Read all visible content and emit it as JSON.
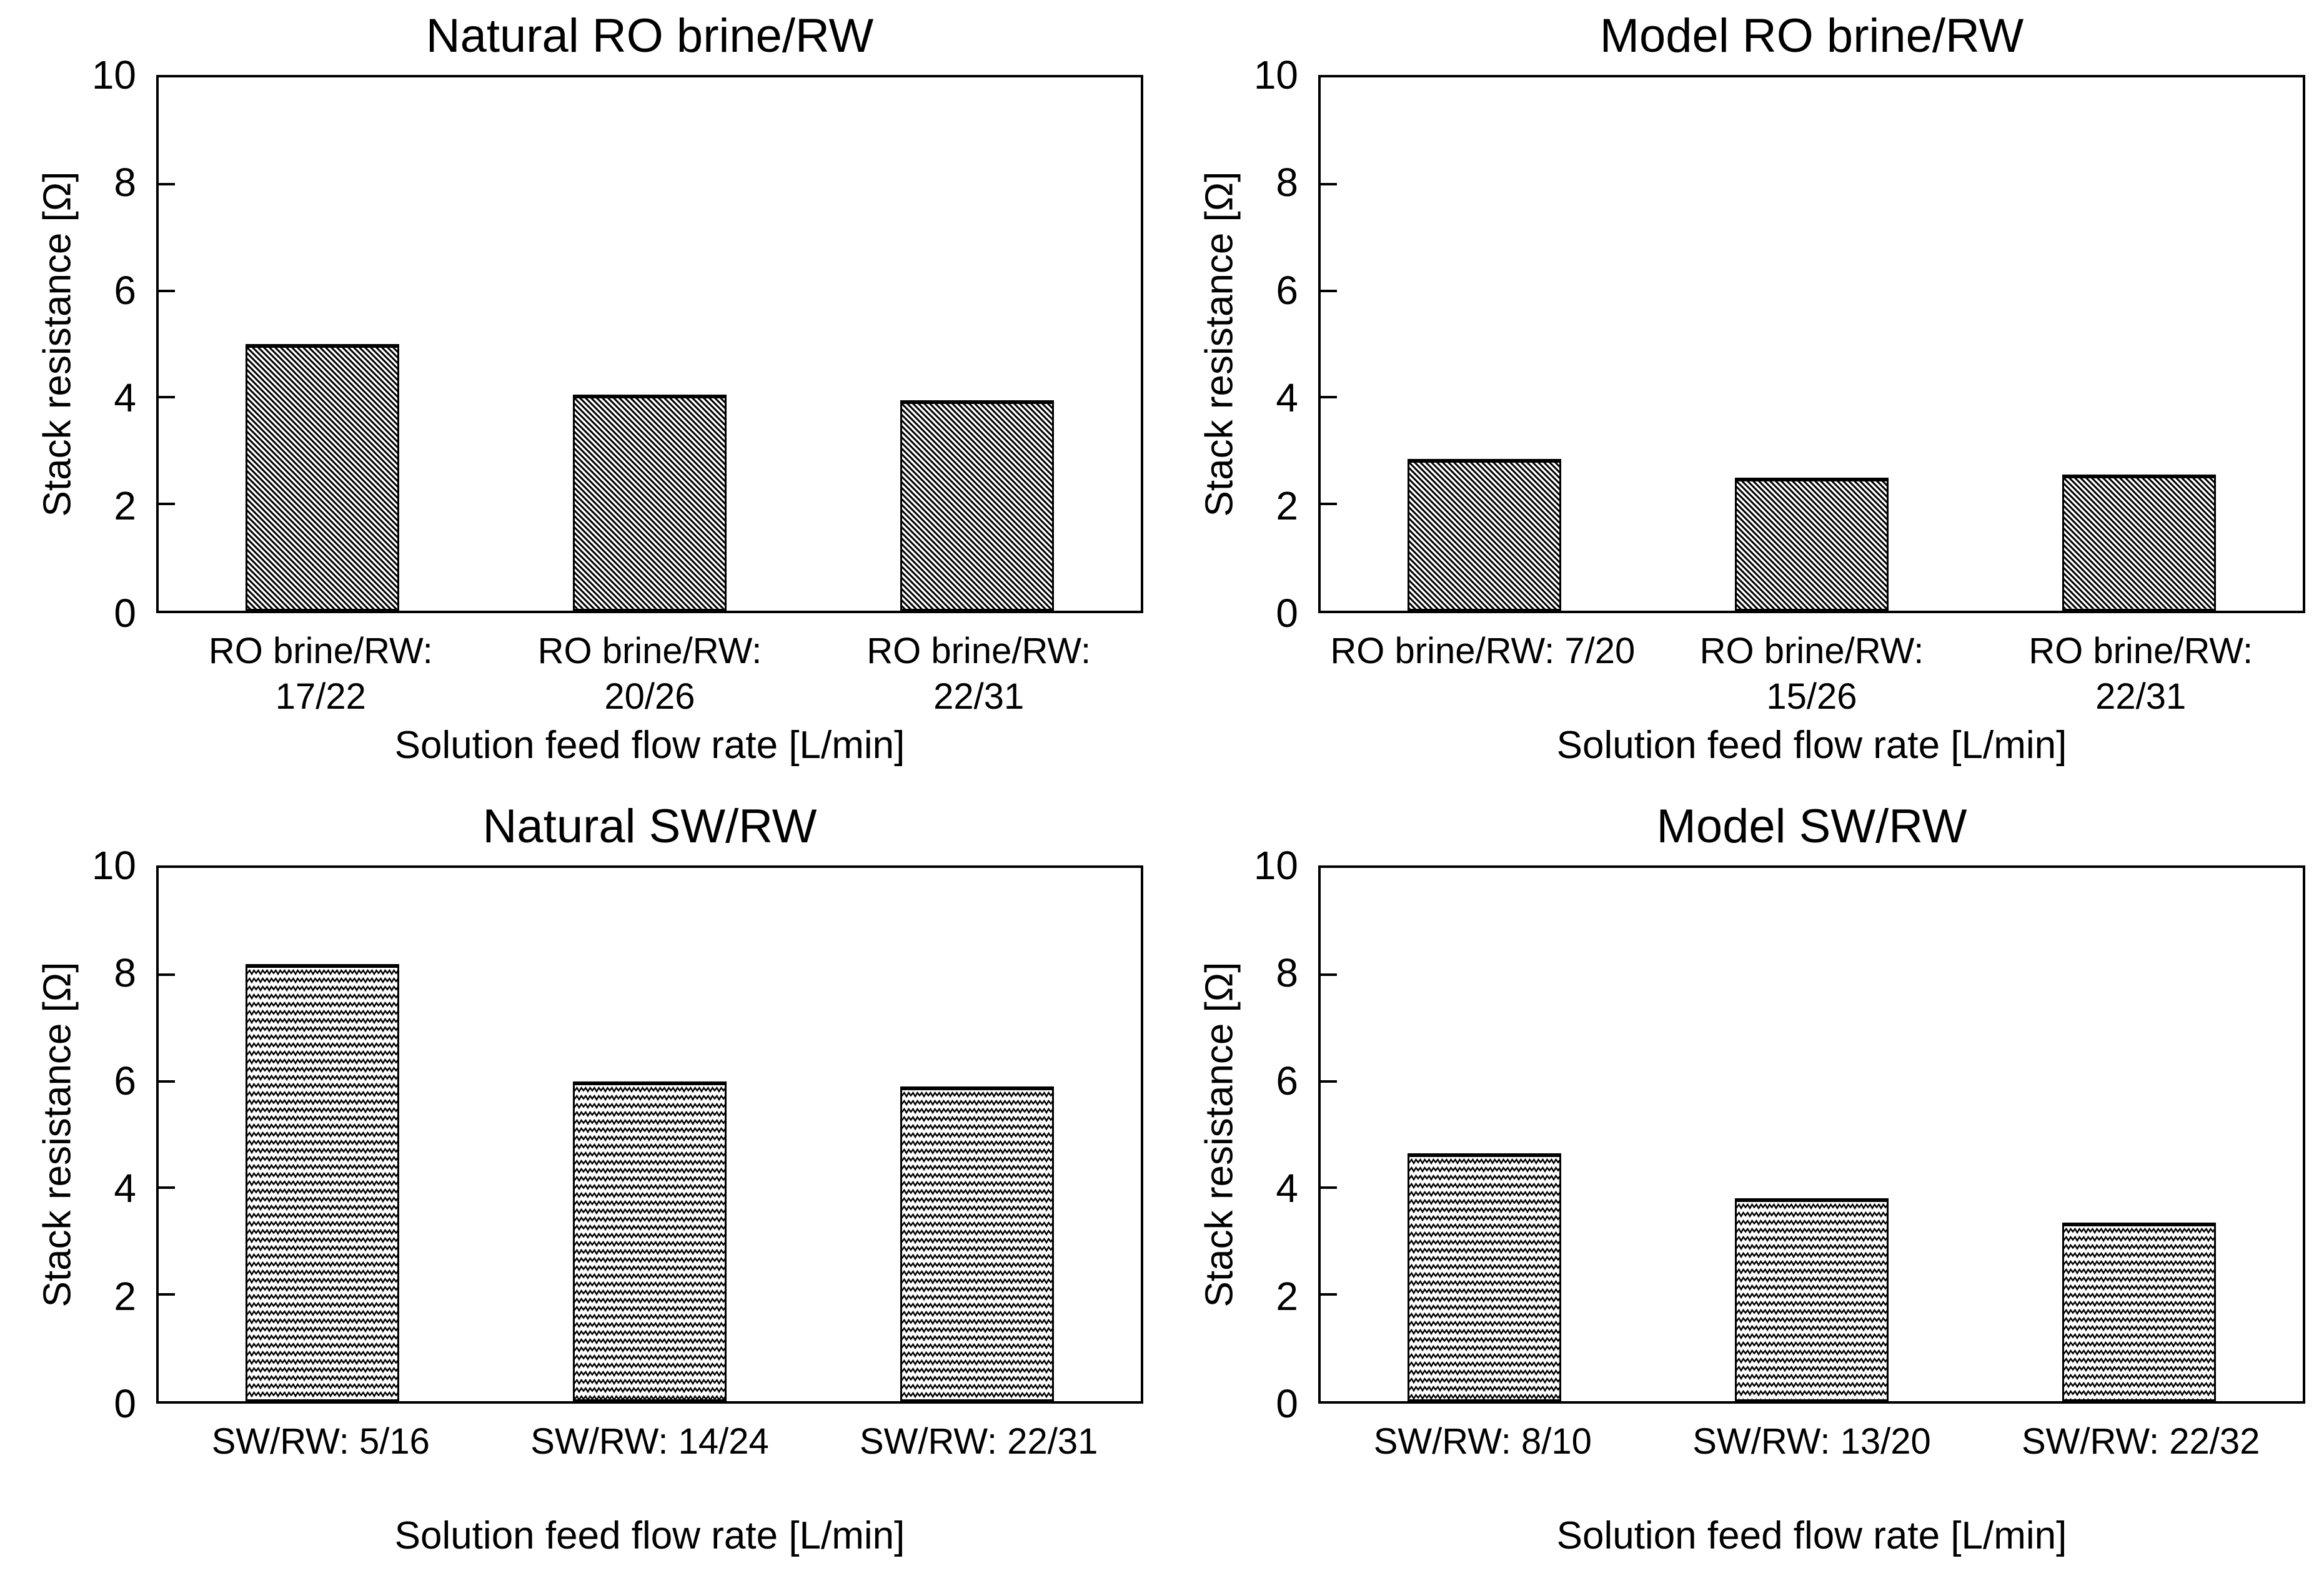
{
  "chart_data": [
    {
      "type": "bar",
      "title": "Natural RO brine/RW",
      "ylabel": "Stack resistance [Ω]",
      "xlabel": "Solution feed flow rate [L/min]",
      "ylim": [
        0,
        10
      ],
      "yticks": [
        0,
        2,
        4,
        6,
        8,
        10
      ],
      "grid": false,
      "legend": "none",
      "hatch": "diagonal-down",
      "bar_color": "black-on-white",
      "categories": [
        {
          "line1": "RO brine/RW:",
          "line2": "17/22"
        },
        {
          "line1": "RO brine/RW:",
          "line2": "20/26"
        },
        {
          "line1": "RO brine/RW:",
          "line2": "22/31"
        }
      ],
      "values": [
        5.0,
        4.05,
        3.95
      ]
    },
    {
      "type": "bar",
      "title": "Model RO brine/RW",
      "ylabel": "Stack resistance [Ω]",
      "xlabel": "Solution feed flow rate [L/min]",
      "ylim": [
        0,
        10
      ],
      "yticks": [
        0,
        2,
        4,
        6,
        8,
        10
      ],
      "grid": false,
      "legend": "none",
      "hatch": "diagonal-down",
      "bar_color": "black-on-white",
      "categories": [
        {
          "line1": "RO brine/RW: 7/20",
          "line2": ""
        },
        {
          "line1": "RO brine/RW:",
          "line2": "15/26"
        },
        {
          "line1": "RO brine/RW:",
          "line2": "22/31"
        }
      ],
      "values": [
        2.85,
        2.5,
        2.55
      ]
    },
    {
      "type": "bar",
      "title": "Natural SW/RW",
      "ylabel": "Stack resistance [Ω]",
      "xlabel": "Solution feed flow rate [L/min]",
      "ylim": [
        0,
        10
      ],
      "yticks": [
        0,
        2,
        4,
        6,
        8,
        10
      ],
      "grid": false,
      "legend": "none",
      "hatch": "zigzag",
      "bar_color": "black-on-white",
      "categories": [
        {
          "line1": "SW/RW: 5/16",
          "line2": ""
        },
        {
          "line1": "SW/RW: 14/24",
          "line2": ""
        },
        {
          "line1": "SW/RW: 22/31",
          "line2": ""
        }
      ],
      "values": [
        8.2,
        6.0,
        5.9
      ]
    },
    {
      "type": "bar",
      "title": "Model SW/RW",
      "ylabel": "Stack resistance [Ω]",
      "xlabel": "Solution feed flow rate [L/min]",
      "ylim": [
        0,
        10
      ],
      "yticks": [
        0,
        2,
        4,
        6,
        8,
        10
      ],
      "grid": false,
      "legend": "none",
      "hatch": "zigzag",
      "bar_color": "black-on-white",
      "categories": [
        {
          "line1": "SW/RW: 8/10",
          "line2": ""
        },
        {
          "line1": "SW/RW: 13/20",
          "line2": ""
        },
        {
          "line1": "SW/RW: 22/32",
          "line2": ""
        }
      ],
      "values": [
        4.65,
        3.8,
        3.35
      ]
    }
  ]
}
